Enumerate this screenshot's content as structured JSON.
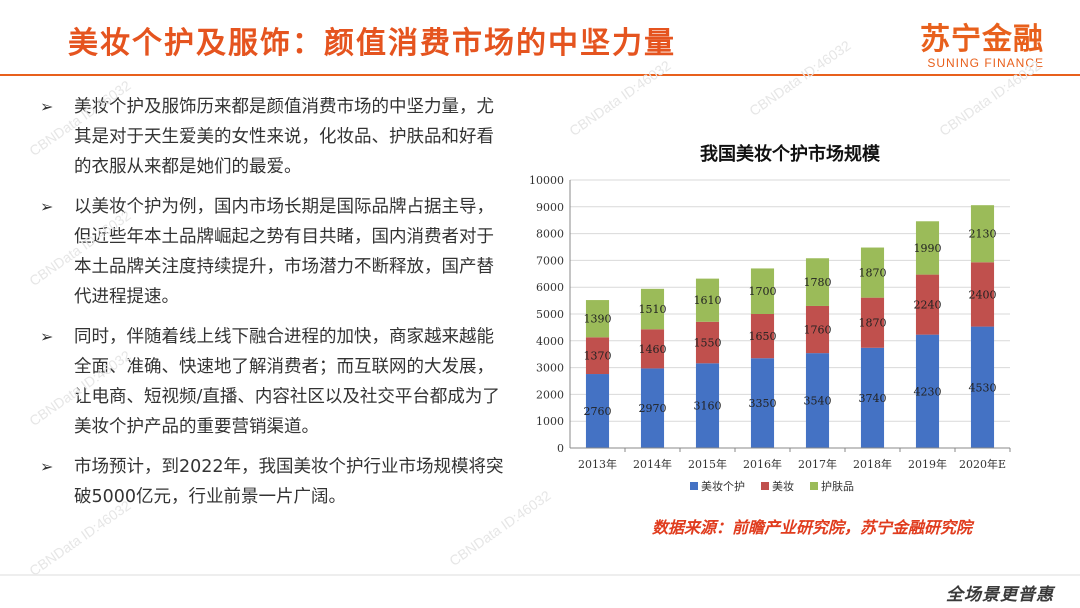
{
  "slide": {
    "title": "美妆个护及服饰：颜值消费市场的中坚力量"
  },
  "brand": {
    "cn": "苏宁金融",
    "en": "SUNING FINANCE"
  },
  "bullets": [
    "美妆个护及服饰历来都是颜值消费市场的中坚力量，尤其是对于天生爱美的女性来说，化妆品、护肤品和好看的衣服从来都是她们的最爱。",
    "以美妆个护为例，国内市场长期是国际品牌占据主导，但近些年本土品牌崛起之势有目共睹，国内消费者对于本土品牌关注度持续提升，市场潜力不断释放，国产替代进程提速。",
    "同时，伴随着线上线下融合进程的加快，商家越来越能全面、准确、快速地了解消费者；而互联网的大发展，让电商、短视频/直播、内容社区以及社交平台都成为了美妆个护产品的重要营销渠道。",
    "市场预计，到2022年，我国美妆个护行业市场规模将突破5000亿元，行业前景一片广阔。"
  ],
  "source": "数据来源：前瞻产业研究院，苏宁金融研究院",
  "footer": {
    "logo_text": "全场景更普惠"
  },
  "watermark": "CBNData ID:46032",
  "chart_data": {
    "type": "bar",
    "stacked": true,
    "title": "我国美妆个护市场规模",
    "categories": [
      "2013年",
      "2014年",
      "2015年",
      "2016年",
      "2017年",
      "2018年",
      "2019年",
      "2020年E"
    ],
    "series": [
      {
        "name": "美妆个护",
        "values": [
          2760,
          2970,
          3160,
          3350,
          3540,
          3740,
          4230,
          4530
        ],
        "color": "#4472c4"
      },
      {
        "name": "美妆",
        "values": [
          1370,
          1460,
          1550,
          1650,
          1760,
          1870,
          2240,
          2400
        ],
        "color": "#c0504d"
      },
      {
        "name": "护肤品",
        "values": [
          1390,
          1510,
          1610,
          1700,
          1780,
          1870,
          1990,
          2130
        ],
        "color": "#9bbb59"
      }
    ],
    "ylim": [
      0,
      10000
    ],
    "yticks": [
      0,
      1000,
      2000,
      3000,
      4000,
      5000,
      6000,
      7000,
      8000,
      9000,
      10000
    ],
    "xlabel": "",
    "ylabel": "",
    "legend_position": "bottom"
  }
}
